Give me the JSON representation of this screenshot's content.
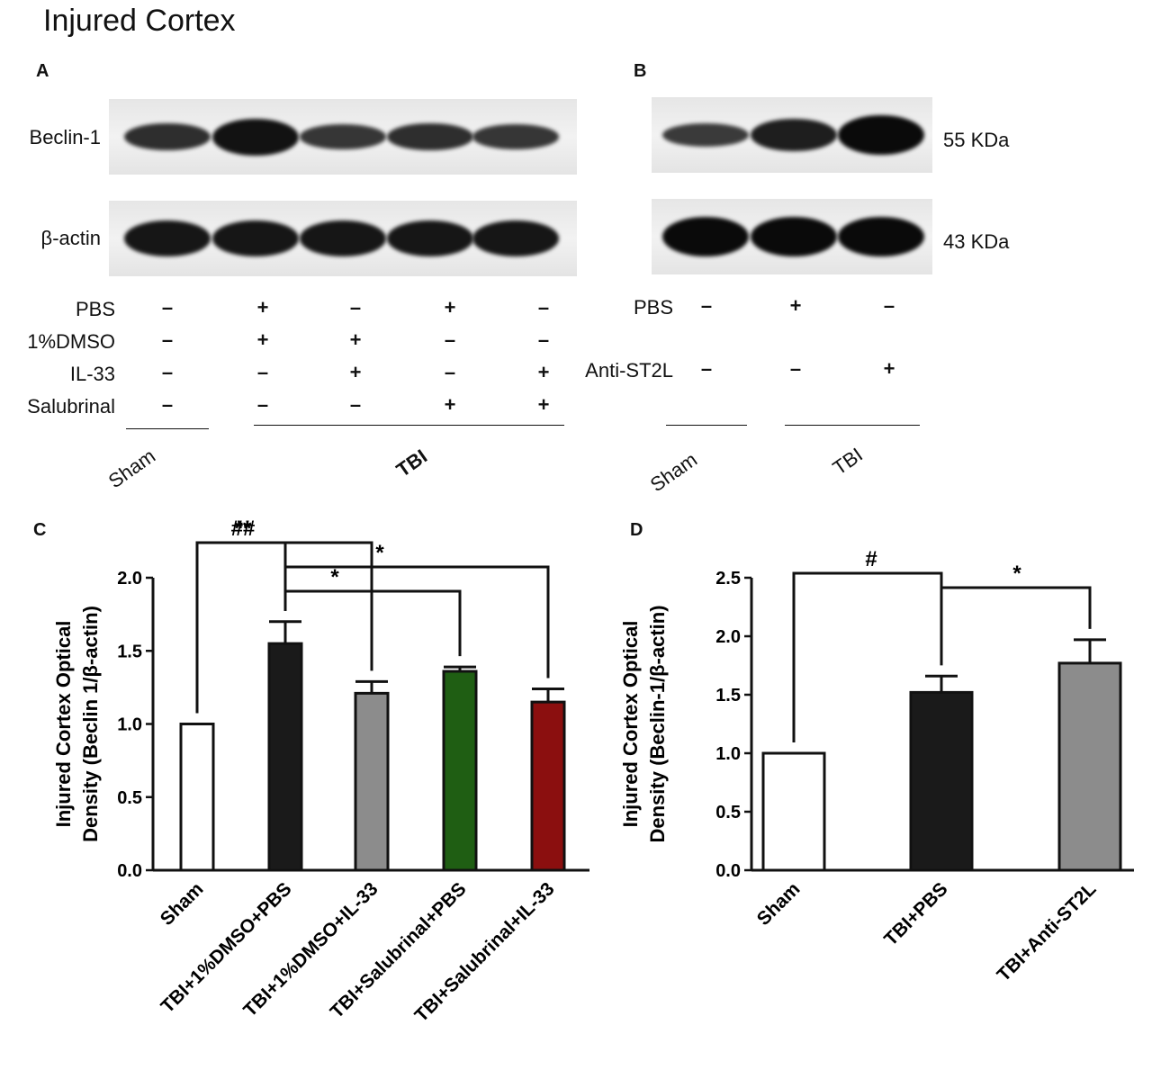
{
  "title": "Injured Cortex",
  "panels": {
    "A": {
      "label": "A",
      "rows": [
        {
          "label": "Beclin-1",
          "intensities": [
            0.55,
            0.9,
            0.45,
            0.55,
            0.45
          ]
        },
        {
          "label": "β-actin",
          "intensities": [
            0.85,
            0.85,
            0.85,
            0.85,
            0.85
          ]
        }
      ],
      "conditions": [
        {
          "label": "PBS",
          "marks": [
            "–",
            "+",
            "–",
            "+",
            "–"
          ]
        },
        {
          "label": "1%DMSO",
          "marks": [
            "–",
            "+",
            "+",
            "–",
            "–"
          ]
        },
        {
          "label": "IL-33",
          "marks": [
            "–",
            "–",
            "+",
            "–",
            "+"
          ]
        },
        {
          "label": "Salubrinal",
          "marks": [
            "–",
            "–",
            "–",
            "+",
            "+"
          ]
        }
      ],
      "groups": [
        "Sham",
        "TBI"
      ]
    },
    "B": {
      "label": "B",
      "rows": [
        {
          "label": "55 KDa",
          "intensities": [
            0.4,
            0.75,
            1.0
          ]
        },
        {
          "label": "43 KDa",
          "intensities": [
            1.0,
            1.0,
            1.0
          ]
        }
      ],
      "conditions": [
        {
          "label": "PBS",
          "marks": [
            "–",
            "+",
            "–"
          ]
        },
        {
          "label": "Anti-ST2L",
          "marks": [
            "–",
            "–",
            "+"
          ]
        }
      ],
      "groups": [
        "Sham",
        "TBI"
      ]
    }
  },
  "chart_data": [
    {
      "panel": "C",
      "type": "bar",
      "ylabel_line1": "Injured Cortex Optical",
      "ylabel_line2": "Density (Beclin 1/β-actin)",
      "ylim": [
        0,
        2.0
      ],
      "yticks": [
        "0.0",
        "0.5",
        "1.0",
        "1.5",
        "2.0"
      ],
      "categories": [
        "Sham",
        "TBI+1%DMSO+PBS",
        "TBI+1%DMSO+IL-33",
        "TBI+Salubrinal+PBS",
        "TBI+Salubrinal+IL-33"
      ],
      "values": [
        1.0,
        1.55,
        1.21,
        1.36,
        1.15
      ],
      "errors": [
        0,
        0.15,
        0.08,
        0.03,
        0.09
      ],
      "colors": [
        "#ffffff",
        "#1a1a1a",
        "#8c8c8c",
        "#1f5e13",
        "#8b0f0f"
      ],
      "significance": [
        {
          "label": "##",
          "from": 0,
          "to": 1
        },
        {
          "label": "**",
          "from": 1,
          "to": 2
        },
        {
          "label": "*",
          "from": 1,
          "to": 3
        },
        {
          "label": "*",
          "from": 1,
          "to": 4
        }
      ]
    },
    {
      "panel": "D",
      "type": "bar",
      "ylabel_line1": "Injured Cortex Optical",
      "ylabel_line2": "Density (Beclin-1/β-actin)",
      "ylim": [
        0,
        2.5
      ],
      "yticks": [
        "0.0",
        "0.5",
        "1.0",
        "1.5",
        "2.0",
        "2.5"
      ],
      "categories": [
        "Sham",
        "TBI+PBS",
        "TBI+Anti-ST2L"
      ],
      "values": [
        1.0,
        1.52,
        1.77
      ],
      "errors": [
        0,
        0.14,
        0.2
      ],
      "colors": [
        "#ffffff",
        "#1a1a1a",
        "#8c8c8c"
      ],
      "significance": [
        {
          "label": "#",
          "from": 0,
          "to": 1
        },
        {
          "label": "*",
          "from": 1,
          "to": 2
        }
      ]
    }
  ]
}
